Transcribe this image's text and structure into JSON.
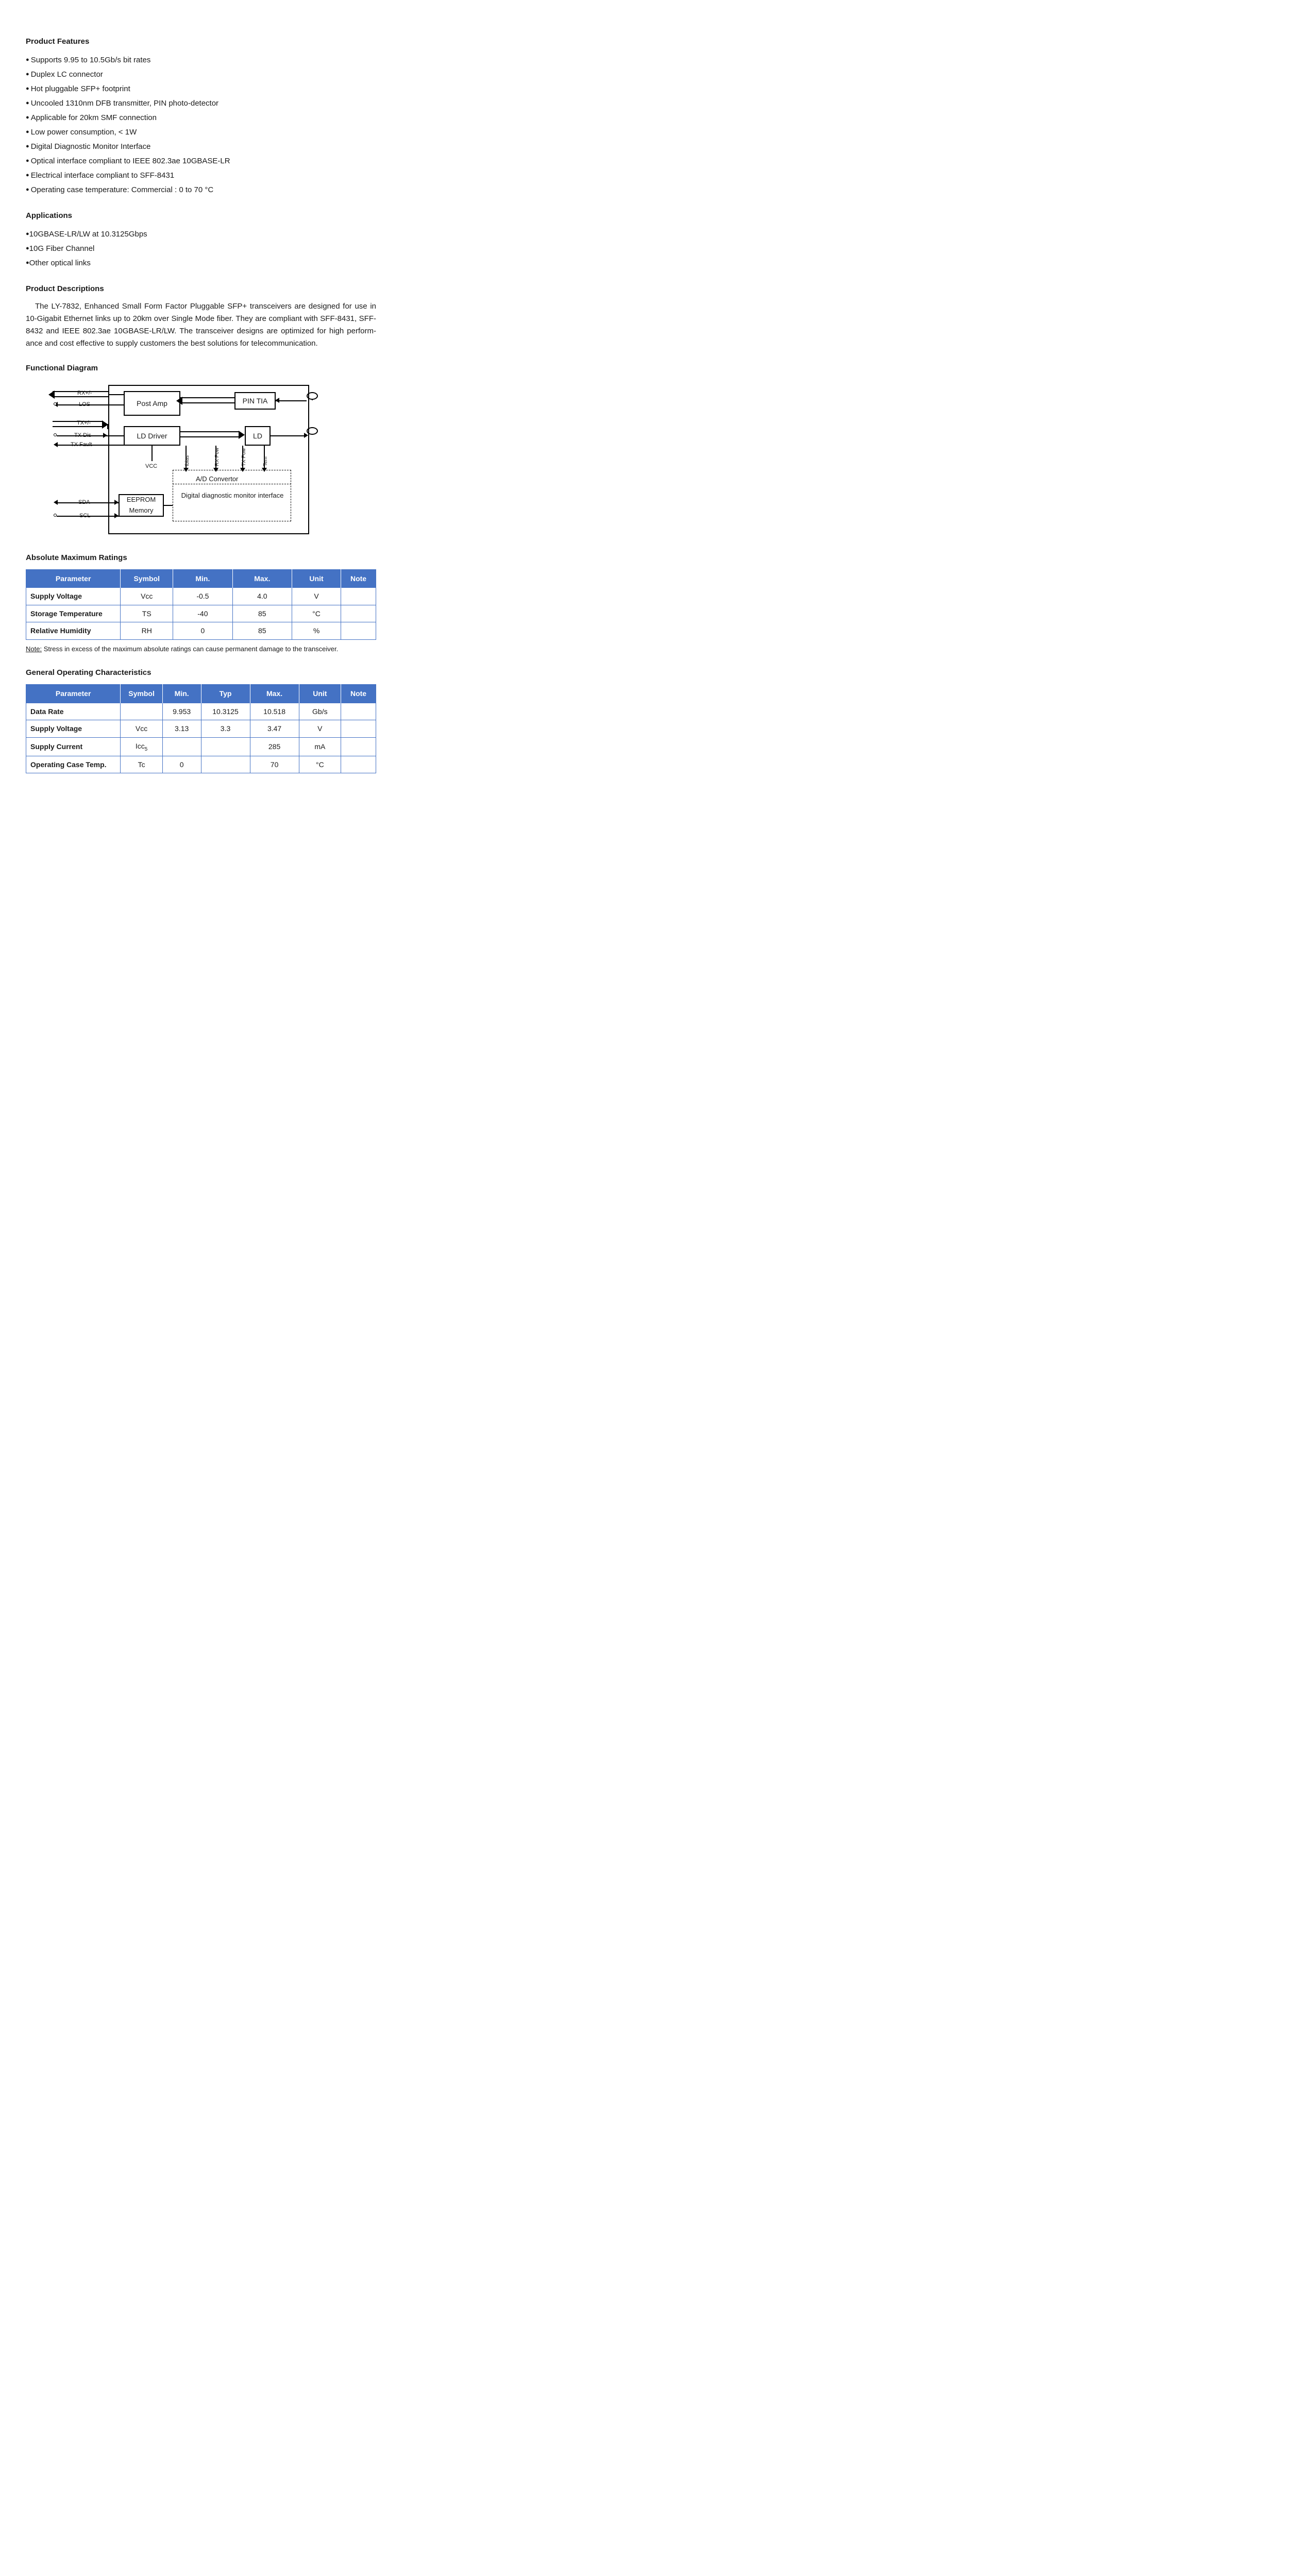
{
  "sections": {
    "features_title": "Product Features",
    "features": [
      "Supports 9.95 to 10.5Gb/s bit rates",
      "Duplex LC connector",
      "Hot pluggable SFP+ footprint",
      "Uncooled 1310nm DFB transmitter, PIN photo-detector",
      "Applicable for 20km SMF connection",
      "Low power consumption, < 1W",
      "Digital Diagnostic Monitor Interface",
      "Optical interface compliant to IEEE 802.3ae 10GBASE-LR",
      "Electrical interface compliant to SFF-8431",
      "Operating case temperature: Commercial : 0 to 70 °C"
    ],
    "applications_title": "Applications",
    "applications": [
      "10GBASE-LR/LW at 10.3125Gbps",
      "10G Fiber Channel",
      "Other optical links"
    ],
    "descriptions_title": "Product Descriptions",
    "description_text": "The LY-7832, Enhanced Small Form Factor Pluggable SFP+ transceivers are designed for use in 10-Gigabit Ethernet links up to 20km over Single Mode fiber. They are compliant with SFF-8431, SFF-8432 and IEEE 802.3ae 10GBASE-LR/LW. The transceiver designs are optimized for high perform-ance and cost effective to supply customers the best solutions for telecommunication.",
    "diagram_title": "Functional Diagram",
    "diagram": {
      "signals": [
        "RX+/-",
        "LOS",
        "TX+/-",
        "TX Dis",
        "TX Fault",
        "SDA",
        "SCL"
      ],
      "blocks": {
        "post_amp": "Post Amp",
        "pin_tia": "PIN TIA",
        "ld_driver": "LD Driver",
        "ld": "LD",
        "eeprom": "EEPROM Memory",
        "ddm": "Digital diagnostic monitor interface",
        "ad": "A/D Convertor",
        "vcc": "VCC"
      },
      "vlabels": [
        "Ibias",
        "RX Pow",
        "TX Pow",
        "Tem"
      ]
    },
    "amr_title": "Absolute Maximum Ratings",
    "amr_headers": [
      "Parameter",
      "Symbol",
      "Min.",
      "Max.",
      "Unit",
      "Note"
    ],
    "amr_widths": [
      "27%",
      "15%",
      "17%",
      "17%",
      "14%",
      "10%"
    ],
    "amr_rows": [
      [
        "Supply Voltage",
        "Vcc",
        "-0.5",
        "4.0",
        "V",
        ""
      ],
      [
        "Storage Temperature",
        "TS",
        "-40",
        "85",
        "°C",
        ""
      ],
      [
        "Relative Humidity",
        "RH",
        "0",
        "85",
        "%",
        ""
      ]
    ],
    "amr_note_label": "Note:",
    "amr_note": " Stress in excess of the maximum absolute ratings can cause permanent damage to the transceiver.",
    "goc_title": "General Operating Characteristics",
    "goc_headers": [
      "Parameter",
      "Symbol",
      "Min.",
      "Typ",
      "Max.",
      "Unit",
      "Note"
    ],
    "goc_widths": [
      "27%",
      "12%",
      "11%",
      "14%",
      "14%",
      "12%",
      "10%"
    ],
    "goc_rows": [
      [
        "Data Rate",
        "",
        "9.953",
        "10.3125",
        "10.518",
        "Gb/s",
        ""
      ],
      [
        "Supply Voltage",
        "Vcc",
        "3.13",
        "3.3",
        "3.47",
        "V",
        ""
      ],
      [
        "Supply Current",
        "Icc₅",
        "",
        "",
        "285",
        "mA",
        ""
      ],
      [
        "Operating Case Temp.",
        "Tc",
        "0",
        "",
        "70",
        "°C",
        ""
      ]
    ]
  },
  "colors": {
    "table_header_bg": "#4472c4",
    "table_header_fg": "#ffffff",
    "border": "#4472c4",
    "text": "#1a1a1a"
  }
}
